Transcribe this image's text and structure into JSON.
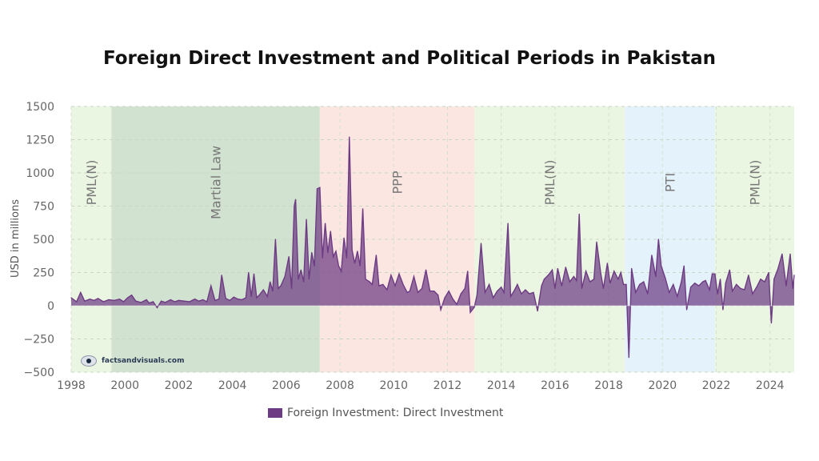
{
  "chart_data": {
    "type": "area",
    "title": "Foreign Direct Investment and Political Periods in Pakistan",
    "ylabel": "USD in millions",
    "xlabel": "",
    "xlim": [
      1998.0,
      2024.9
    ],
    "ylim": [
      -500,
      1500
    ],
    "x_ticks": [
      "1998",
      "2000",
      "2002",
      "2004",
      "2006",
      "2008",
      "2010",
      "2012",
      "2014",
      "2016",
      "2018",
      "2020",
      "2022",
      "2024"
    ],
    "y_ticks": [
      "1500",
      "1250",
      "1000",
      "750",
      "500",
      "250",
      "0",
      "−250",
      "−500"
    ],
    "grid": true,
    "legend_position": "bottom-center",
    "series": [
      {
        "name": "Foreign Investment: Direct Investment",
        "color": "#6d3b83",
        "points": [
          [
            1998.0,
            60
          ],
          [
            1998.2,
            30
          ],
          [
            1998.35,
            100
          ],
          [
            1998.5,
            35
          ],
          [
            1998.7,
            50
          ],
          [
            1998.85,
            40
          ],
          [
            1999.0,
            55
          ],
          [
            1999.2,
            30
          ],
          [
            1999.4,
            45
          ],
          [
            1999.6,
            40
          ],
          [
            1999.8,
            50
          ],
          [
            1999.95,
            30
          ],
          [
            2000.1,
            60
          ],
          [
            2000.25,
            80
          ],
          [
            2000.4,
            35
          ],
          [
            2000.6,
            25
          ],
          [
            2000.8,
            45
          ],
          [
            2000.9,
            20
          ],
          [
            2001.05,
            30
          ],
          [
            2001.2,
            -15
          ],
          [
            2001.35,
            35
          ],
          [
            2001.5,
            25
          ],
          [
            2001.7,
            45
          ],
          [
            2001.85,
            30
          ],
          [
            2002.0,
            40
          ],
          [
            2002.2,
            35
          ],
          [
            2002.4,
            30
          ],
          [
            2002.6,
            50
          ],
          [
            2002.75,
            35
          ],
          [
            2002.9,
            45
          ],
          [
            2003.05,
            30
          ],
          [
            2003.2,
            150
          ],
          [
            2003.35,
            40
          ],
          [
            2003.5,
            50
          ],
          [
            2003.6,
            230
          ],
          [
            2003.75,
            55
          ],
          [
            2003.9,
            40
          ],
          [
            2004.05,
            65
          ],
          [
            2004.2,
            50
          ],
          [
            2004.35,
            45
          ],
          [
            2004.5,
            60
          ],
          [
            2004.6,
            250
          ],
          [
            2004.7,
            70
          ],
          [
            2004.8,
            240
          ],
          [
            2004.9,
            60
          ],
          [
            2005.0,
            80
          ],
          [
            2005.15,
            120
          ],
          [
            2005.3,
            70
          ],
          [
            2005.4,
            180
          ],
          [
            2005.5,
            110
          ],
          [
            2005.6,
            500
          ],
          [
            2005.7,
            130
          ],
          [
            2005.8,
            150
          ],
          [
            2005.95,
            220
          ],
          [
            2006.1,
            370
          ],
          [
            2006.2,
            130
          ],
          [
            2006.3,
            750
          ],
          [
            2006.35,
            800
          ],
          [
            2006.45,
            200
          ],
          [
            2006.55,
            270
          ],
          [
            2006.65,
            180
          ],
          [
            2006.75,
            650
          ],
          [
            2006.85,
            200
          ],
          [
            2006.95,
            400
          ],
          [
            2007.05,
            300
          ],
          [
            2007.15,
            880
          ],
          [
            2007.25,
            890
          ],
          [
            2007.35,
            360
          ],
          [
            2007.45,
            620
          ],
          [
            2007.55,
            400
          ],
          [
            2007.65,
            560
          ],
          [
            2007.75,
            370
          ],
          [
            2007.85,
            410
          ],
          [
            2007.95,
            300
          ],
          [
            2008.05,
            260
          ],
          [
            2008.15,
            510
          ],
          [
            2008.25,
            360
          ],
          [
            2008.35,
            1270
          ],
          [
            2008.45,
            420
          ],
          [
            2008.55,
            320
          ],
          [
            2008.65,
            410
          ],
          [
            2008.75,
            300
          ],
          [
            2008.85,
            730
          ],
          [
            2008.95,
            200
          ],
          [
            2009.1,
            180
          ],
          [
            2009.2,
            160
          ],
          [
            2009.35,
            380
          ],
          [
            2009.45,
            150
          ],
          [
            2009.6,
            160
          ],
          [
            2009.75,
            120
          ],
          [
            2009.9,
            230
          ],
          [
            2010.05,
            150
          ],
          [
            2010.2,
            240
          ],
          [
            2010.35,
            160
          ],
          [
            2010.5,
            100
          ],
          [
            2010.6,
            110
          ],
          [
            2010.75,
            220
          ],
          [
            2010.9,
            100
          ],
          [
            2011.05,
            130
          ],
          [
            2011.2,
            270
          ],
          [
            2011.35,
            110
          ],
          [
            2011.5,
            110
          ],
          [
            2011.65,
            80
          ],
          [
            2011.75,
            -30
          ],
          [
            2011.9,
            60
          ],
          [
            2012.05,
            110
          ],
          [
            2012.2,
            50
          ],
          [
            2012.35,
            10
          ],
          [
            2012.5,
            90
          ],
          [
            2012.65,
            130
          ],
          [
            2012.75,
            260
          ],
          [
            2012.85,
            -50
          ],
          [
            2013.0,
            -10
          ],
          [
            2013.1,
            80
          ],
          [
            2013.25,
            470
          ],
          [
            2013.4,
            100
          ],
          [
            2013.55,
            160
          ],
          [
            2013.7,
            60
          ],
          [
            2013.85,
            110
          ],
          [
            2014.0,
            140
          ],
          [
            2014.1,
            100
          ],
          [
            2014.25,
            620
          ],
          [
            2014.35,
            70
          ],
          [
            2014.5,
            120
          ],
          [
            2014.6,
            160
          ],
          [
            2014.75,
            90
          ],
          [
            2014.9,
            120
          ],
          [
            2015.05,
            90
          ],
          [
            2015.2,
            100
          ],
          [
            2015.35,
            -40
          ],
          [
            2015.5,
            150
          ],
          [
            2015.6,
            200
          ],
          [
            2015.75,
            230
          ],
          [
            2015.9,
            270
          ],
          [
            2016.0,
            130
          ],
          [
            2016.1,
            280
          ],
          [
            2016.25,
            150
          ],
          [
            2016.4,
            290
          ],
          [
            2016.55,
            180
          ],
          [
            2016.7,
            220
          ],
          [
            2016.8,
            190
          ],
          [
            2016.9,
            690
          ],
          [
            2017.0,
            130
          ],
          [
            2017.15,
            260
          ],
          [
            2017.3,
            180
          ],
          [
            2017.45,
            200
          ],
          [
            2017.55,
            480
          ],
          [
            2017.7,
            250
          ],
          [
            2017.8,
            130
          ],
          [
            2017.95,
            320
          ],
          [
            2018.05,
            170
          ],
          [
            2018.2,
            260
          ],
          [
            2018.35,
            200
          ],
          [
            2018.45,
            250
          ],
          [
            2018.55,
            160
          ],
          [
            2018.65,
            160
          ],
          [
            2018.75,
            -390
          ],
          [
            2018.85,
            280
          ],
          [
            2019.0,
            100
          ],
          [
            2019.15,
            160
          ],
          [
            2019.3,
            180
          ],
          [
            2019.45,
            90
          ],
          [
            2019.6,
            380
          ],
          [
            2019.75,
            220
          ],
          [
            2019.85,
            500
          ],
          [
            2019.95,
            300
          ],
          [
            2020.1,
            210
          ],
          [
            2020.25,
            100
          ],
          [
            2020.4,
            160
          ],
          [
            2020.55,
            70
          ],
          [
            2020.7,
            180
          ],
          [
            2020.8,
            300
          ],
          [
            2020.9,
            -30
          ],
          [
            2021.05,
            140
          ],
          [
            2021.2,
            170
          ],
          [
            2021.35,
            150
          ],
          [
            2021.5,
            180
          ],
          [
            2021.6,
            190
          ],
          [
            2021.75,
            120
          ],
          [
            2021.85,
            240
          ],
          [
            2021.95,
            240
          ],
          [
            2022.05,
            90
          ],
          [
            2022.15,
            200
          ],
          [
            2022.25,
            -30
          ],
          [
            2022.35,
            170
          ],
          [
            2022.5,
            270
          ],
          [
            2022.6,
            110
          ],
          [
            2022.75,
            160
          ],
          [
            2022.9,
            130
          ],
          [
            2023.05,
            120
          ],
          [
            2023.2,
            230
          ],
          [
            2023.35,
            90
          ],
          [
            2023.5,
            140
          ],
          [
            2023.65,
            200
          ],
          [
            2023.8,
            180
          ],
          [
            2023.95,
            250
          ],
          [
            2024.05,
            -130
          ],
          [
            2024.15,
            200
          ],
          [
            2024.3,
            280
          ],
          [
            2024.45,
            390
          ],
          [
            2024.6,
            150
          ],
          [
            2024.75,
            390
          ],
          [
            2024.85,
            130
          ],
          [
            2024.9,
            230
          ]
        ]
      }
    ],
    "periods": [
      {
        "label": "PML(N)",
        "start": 1998.0,
        "end": 1999.5,
        "color": "#eaf6e1"
      },
      {
        "label": "Martial Law",
        "start": 1999.5,
        "end": 2007.25,
        "color": "#d2e2d0"
      },
      {
        "label": "PPP",
        "start": 2007.25,
        "end": 2013.0,
        "color": "#fbe6e1"
      },
      {
        "label": "PML(N)",
        "start": 2013.0,
        "end": 2018.6,
        "color": "#eaf6e1"
      },
      {
        "label": "PTI",
        "start": 2018.6,
        "end": 2021.95,
        "color": "#e3f2fb"
      },
      {
        "label": "PML(N)",
        "start": 2021.95,
        "end": 2024.9,
        "color": "#eaf6e1"
      }
    ]
  },
  "legend": {
    "label": "Foreign Investment: Direct Investment",
    "color": "#6d3b83"
  },
  "watermark": {
    "text": "factsandvisuals.com"
  }
}
